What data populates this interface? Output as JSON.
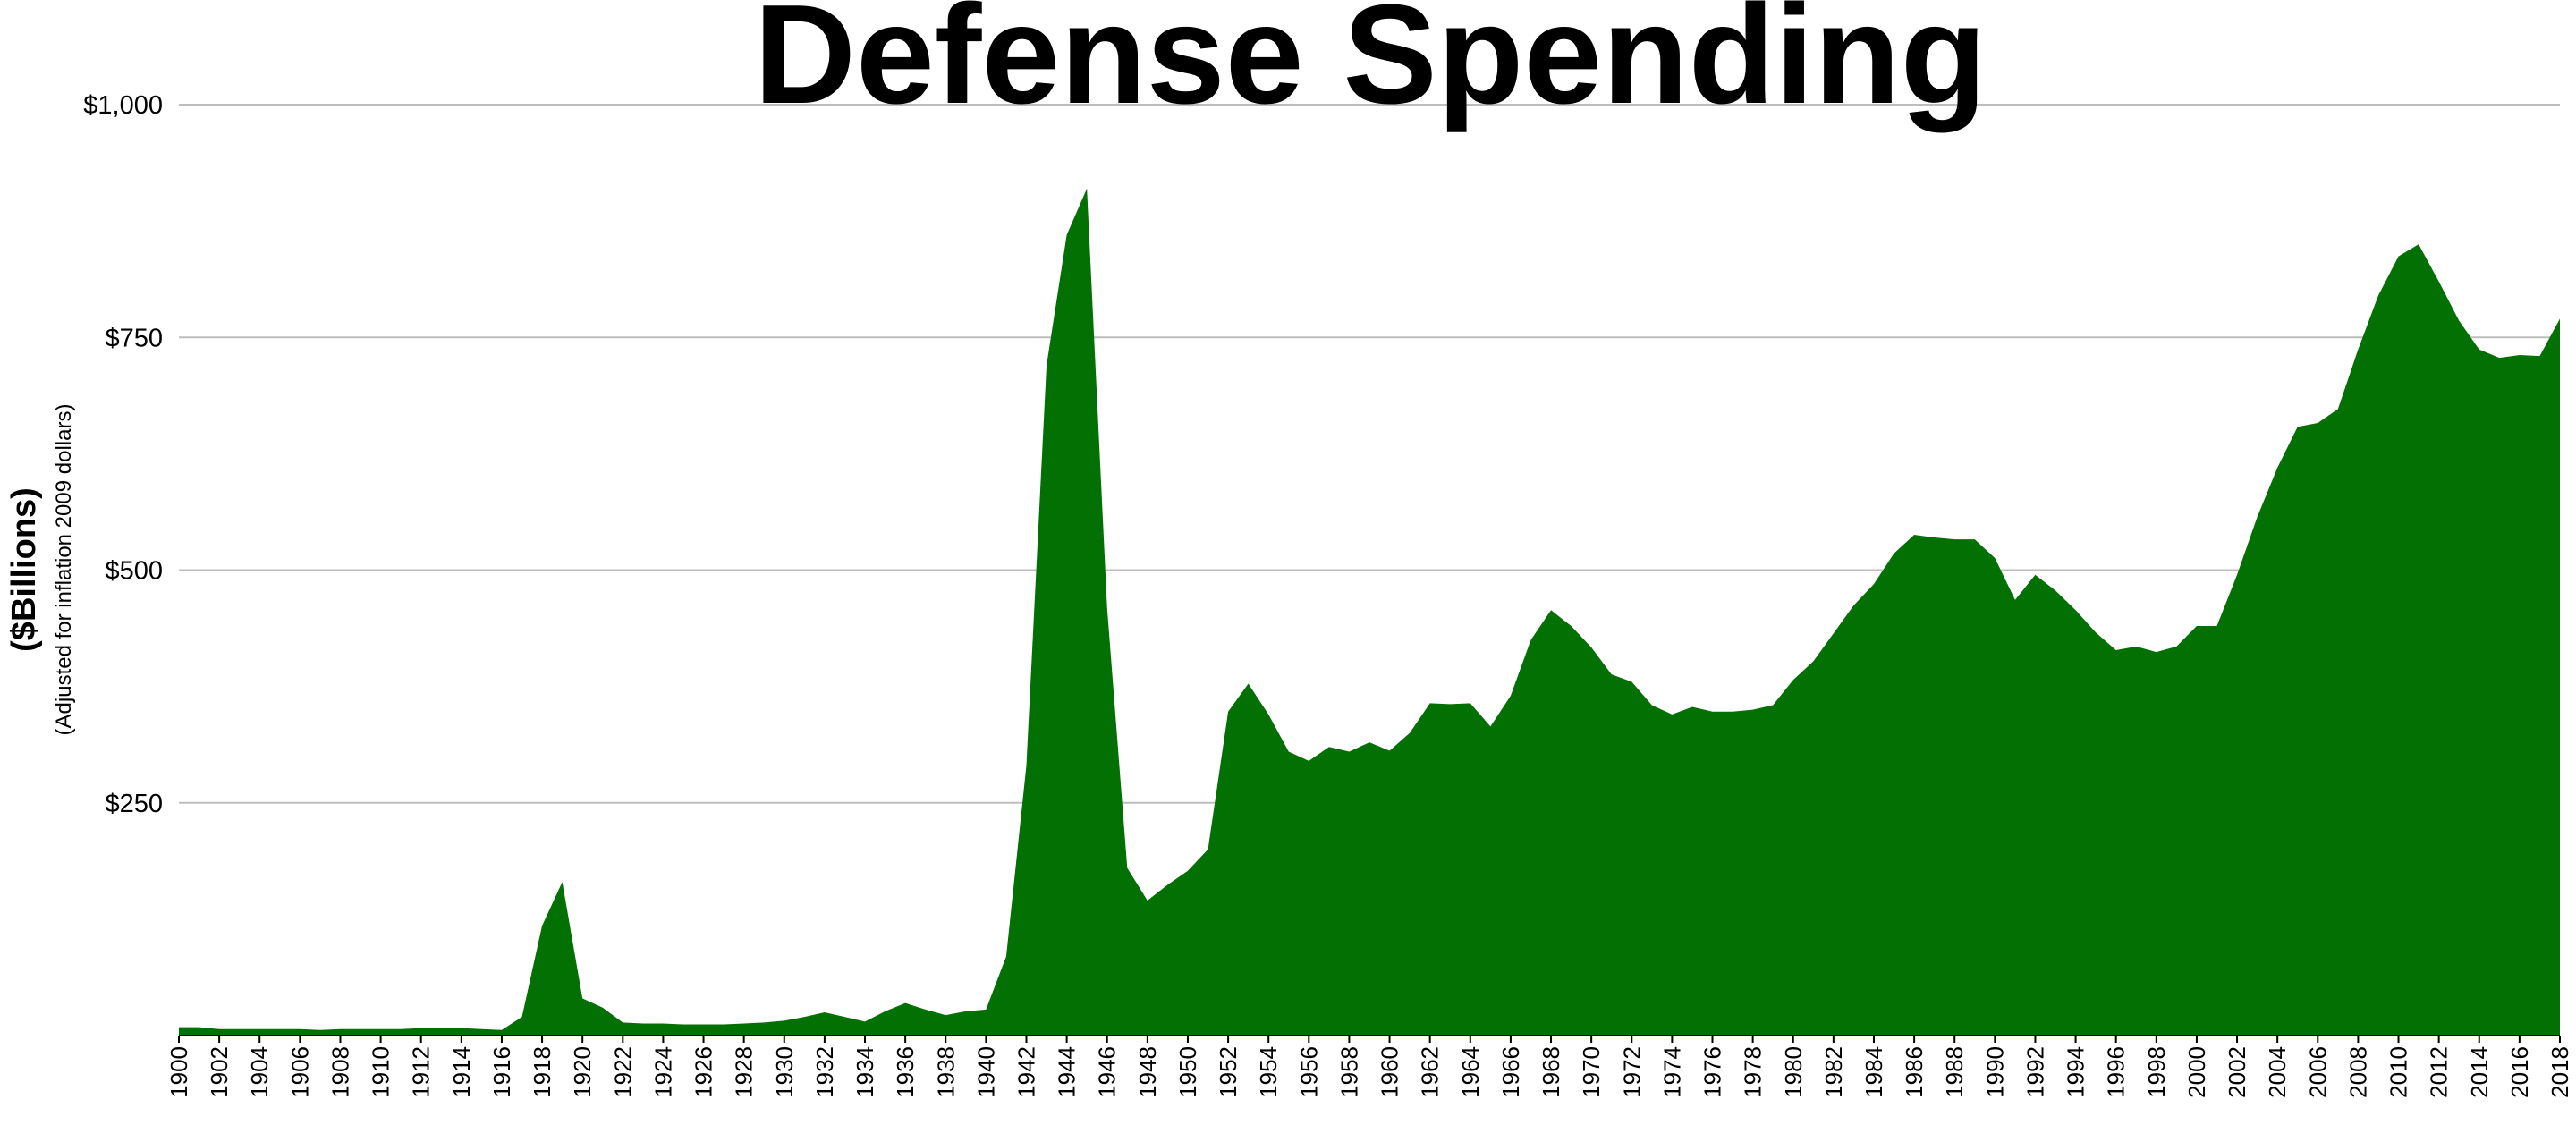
{
  "chart_data": {
    "type": "area",
    "title": "Defense Spending",
    "ylabel": "($Billions)",
    "ylabel_sub": "(Adjusted for inflation 2009 dollars)",
    "xlabel": "",
    "ylim": [
      0,
      1000
    ],
    "yticks": [
      {
        "value": 250,
        "label": "$250"
      },
      {
        "value": 500,
        "label": "$500"
      },
      {
        "value": 750,
        "label": "$750"
      },
      {
        "value": 1000,
        "label": "$1,000"
      }
    ],
    "grid": true,
    "legend": "none",
    "color": "#037003",
    "x": [
      1900,
      1901,
      1902,
      1903,
      1904,
      1905,
      1906,
      1907,
      1908,
      1909,
      1910,
      1911,
      1912,
      1913,
      1914,
      1915,
      1916,
      1917,
      1918,
      1919,
      1920,
      1921,
      1922,
      1923,
      1924,
      1925,
      1926,
      1927,
      1928,
      1929,
      1930,
      1931,
      1932,
      1933,
      1934,
      1935,
      1936,
      1937,
      1938,
      1939,
      1940,
      1941,
      1942,
      1943,
      1944,
      1945,
      1946,
      1947,
      1948,
      1949,
      1950,
      1951,
      1952,
      1953,
      1954,
      1955,
      1956,
      1957,
      1958,
      1959,
      1960,
      1961,
      1962,
      1963,
      1964,
      1965,
      1966,
      1967,
      1968,
      1969,
      1970,
      1971,
      1972,
      1973,
      1974,
      1975,
      1976,
      1977,
      1978,
      1979,
      1980,
      1981,
      1982,
      1983,
      1984,
      1985,
      1986,
      1987,
      1988,
      1989,
      1990,
      1991,
      1992,
      1993,
      1994,
      1995,
      1996,
      1997,
      1998,
      1999,
      2000,
      2001,
      2002,
      2003,
      2004,
      2005,
      2006,
      2007,
      2008,
      2009,
      2010,
      2011,
      2012,
      2013,
      2014,
      2015,
      2016,
      2017,
      2018
    ],
    "values": [
      9,
      9,
      7,
      7,
      7,
      7,
      7,
      6,
      7,
      7,
      7,
      7,
      8,
      8,
      8,
      7,
      6,
      20,
      118,
      165,
      40,
      30,
      14,
      13,
      13,
      12,
      12,
      12,
      13,
      14,
      16,
      20,
      25,
      20,
      15,
      26,
      35,
      28,
      22,
      26,
      28,
      85,
      290,
      720,
      860,
      910,
      460,
      180,
      145,
      162,
      177,
      200,
      348,
      378,
      345,
      305,
      295,
      310,
      305,
      315,
      306,
      325,
      357,
      356,
      357,
      332,
      365,
      425,
      457,
      440,
      417,
      388,
      380,
      355,
      345,
      353,
      348,
      348,
      350,
      355,
      382,
      402,
      432,
      462,
      485,
      518,
      538,
      535,
      533,
      533,
      513,
      468,
      495,
      478,
      457,
      433,
      414,
      418,
      412,
      418,
      440,
      440,
      495,
      557,
      610,
      654,
      658,
      673,
      737,
      795,
      837,
      850,
      810,
      768,
      737,
      728,
      731,
      730,
      770
    ],
    "xticks": [
      "1900",
      "1902",
      "1904",
      "1906",
      "1908",
      "1910",
      "1912",
      "1914",
      "1916",
      "1918",
      "1920",
      "1922",
      "1924",
      "1926",
      "1928",
      "1930",
      "1932",
      "1934",
      "1936",
      "1938",
      "1940",
      "1942",
      "1944",
      "1946",
      "1948",
      "1950",
      "1952",
      "1954",
      "1956",
      "1958",
      "1960",
      "1962",
      "1964",
      "1966",
      "1968",
      "1970",
      "1972",
      "1974",
      "1976",
      "1978",
      "1980",
      "1982",
      "1984",
      "1986",
      "1988",
      "1990",
      "1992",
      "1994",
      "1996",
      "1998",
      "2000",
      "2002",
      "2004",
      "2006",
      "2008",
      "2010",
      "2012",
      "2014",
      "2016",
      "2018"
    ]
  }
}
